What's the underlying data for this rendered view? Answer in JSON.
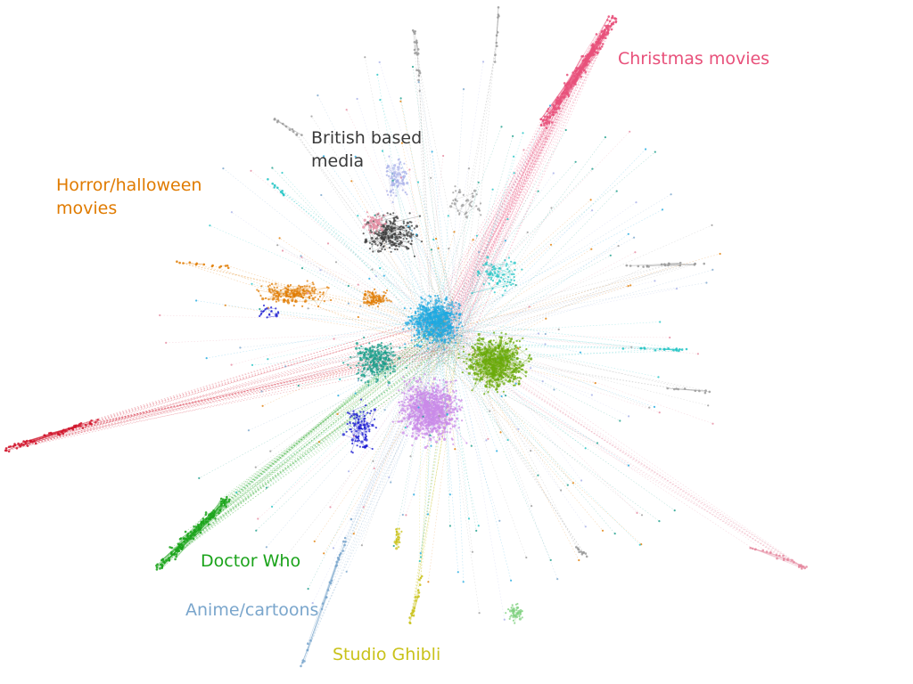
{
  "labels": {
    "christmas": {
      "text": "Christmas movies",
      "color": "#e8507a"
    },
    "british": {
      "lines": [
        "British based",
        "media"
      ],
      "color": "#3a3a3a"
    },
    "horror": {
      "lines": [
        "Horror/halloween",
        "movies"
      ],
      "color": "#e07b00"
    },
    "doctor_who": {
      "text": "Doctor Who",
      "color": "#1aa31a"
    },
    "anime": {
      "text": "Anime/cartoons",
      "color": "#7aa6cc"
    },
    "ghibli": {
      "text": "Studio Ghibli",
      "color": "#c9c21a"
    }
  },
  "clusters": [
    {
      "id": "core-cyan",
      "color": "#1fa9e0"
    },
    {
      "id": "green",
      "color": "#6aaa0a"
    },
    {
      "id": "violet",
      "color": "#c98ae8"
    },
    {
      "id": "teal",
      "color": "#1a9e8a"
    },
    {
      "id": "christmas",
      "color": "#e8507a"
    },
    {
      "id": "british",
      "color": "#3a3a3a"
    },
    {
      "id": "lavender",
      "color": "#a8b0e8"
    },
    {
      "id": "horror",
      "color": "#e07b00"
    },
    {
      "id": "blue",
      "color": "#1515d0"
    },
    {
      "id": "doctor-who",
      "color": "#1aa31a"
    },
    {
      "id": "red",
      "color": "#d0142a"
    },
    {
      "id": "ghibli",
      "color": "#c9c21a"
    },
    {
      "id": "light-green",
      "color": "#7ed07e"
    },
    {
      "id": "turquoise",
      "color": "#22c4c4"
    },
    {
      "id": "pink",
      "color": "#e58aa0"
    },
    {
      "id": "grey",
      "color": "#9a9a9a"
    },
    {
      "id": "steel-blue",
      "color": "#7aa6cc"
    }
  ]
}
